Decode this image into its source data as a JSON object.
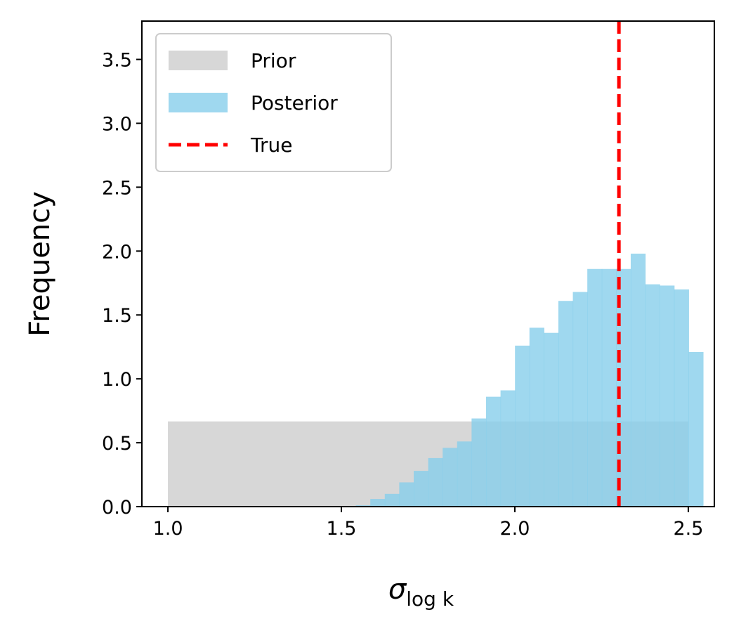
{
  "chart_data": {
    "type": "bar",
    "xlabel": "σ",
    "xlabel_sub": "log k",
    "ylabel": "Frequency",
    "xlim": [
      0.925,
      2.575
    ],
    "ylim": [
      0,
      3.8
    ],
    "x_ticks": [
      1.0,
      1.5,
      2.0,
      2.5
    ],
    "x_tick_labels": [
      "1.0",
      "1.5",
      "2.0",
      "2.5"
    ],
    "y_ticks": [
      0.0,
      0.5,
      1.0,
      1.5,
      2.0,
      2.5,
      3.0,
      3.5
    ],
    "y_tick_labels": [
      "0.0",
      "0.5",
      "1.0",
      "1.5",
      "2.0",
      "2.5",
      "3.0",
      "3.5"
    ],
    "grid": false,
    "legend_position": "top-left",
    "series": [
      {
        "name": "Prior",
        "kind": "histogram",
        "color": "#d3d3d3",
        "opacity": 0.9,
        "bins": [
          [
            1.0,
            2.5,
            0.667
          ]
        ]
      },
      {
        "name": "Posterior",
        "kind": "histogram",
        "color": "#87ceeb",
        "opacity": 0.8,
        "bin_start": 1.5,
        "bin_width": 0.0417,
        "values": [
          0.0,
          0.01,
          0.06,
          0.1,
          0.19,
          0.28,
          0.38,
          0.46,
          0.51,
          0.69,
          0.86,
          0.91,
          1.26,
          1.4,
          1.36,
          1.61,
          1.68,
          1.86,
          1.86,
          1.86,
          1.98,
          1.74,
          1.73,
          1.7,
          1.21
        ]
      }
    ],
    "reference_lines": [
      {
        "name": "True",
        "x": 2.3,
        "color": "#ff0000",
        "style": "dashed"
      }
    ]
  }
}
